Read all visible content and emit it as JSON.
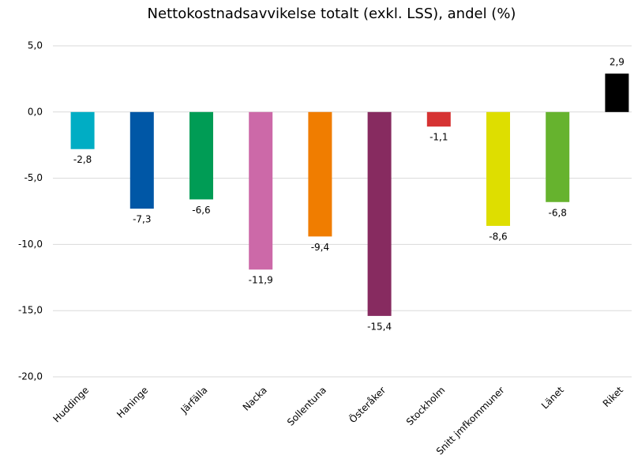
{
  "chart_data": {
    "type": "bar",
    "title": "Nettokostnadsavvikelse totalt (exkl. LSS), andel (%)",
    "categories": [
      "Huddinge",
      "Haninge",
      "Järfälla",
      "Nacka",
      "Sollentuna",
      "Österåker",
      "Stockholm",
      "Snitt jmfkommuner",
      "Länet",
      "Riket"
    ],
    "values": [
      -2.8,
      -7.3,
      -6.6,
      -11.9,
      -9.4,
      -15.4,
      -1.1,
      -8.6,
      -6.8,
      2.9
    ],
    "value_labels": [
      "-2,8",
      "-7,3",
      "-6,6",
      "-11,9",
      "-9,4",
      "-15,4",
      "-1,1",
      "-8,6",
      "-6,8",
      "2,9"
    ],
    "colors": [
      "#00adc4",
      "#0057a6",
      "#009c55",
      "#cc69a8",
      "#f07d00",
      "#872b60",
      "#d63333",
      "#dede00",
      "#66b32e",
      "#000000"
    ],
    "ylim": [
      -20,
      5
    ],
    "yticks": [
      {
        "value": -20,
        "label": "-20,0"
      },
      {
        "value": -15,
        "label": "-15,0"
      },
      {
        "value": -10,
        "label": "-10,0"
      },
      {
        "value": -5,
        "label": "-5,0"
      },
      {
        "value": 0,
        "label": "0,0"
      },
      {
        "value": 5,
        "label": "5,0"
      }
    ],
    "grid": true
  }
}
